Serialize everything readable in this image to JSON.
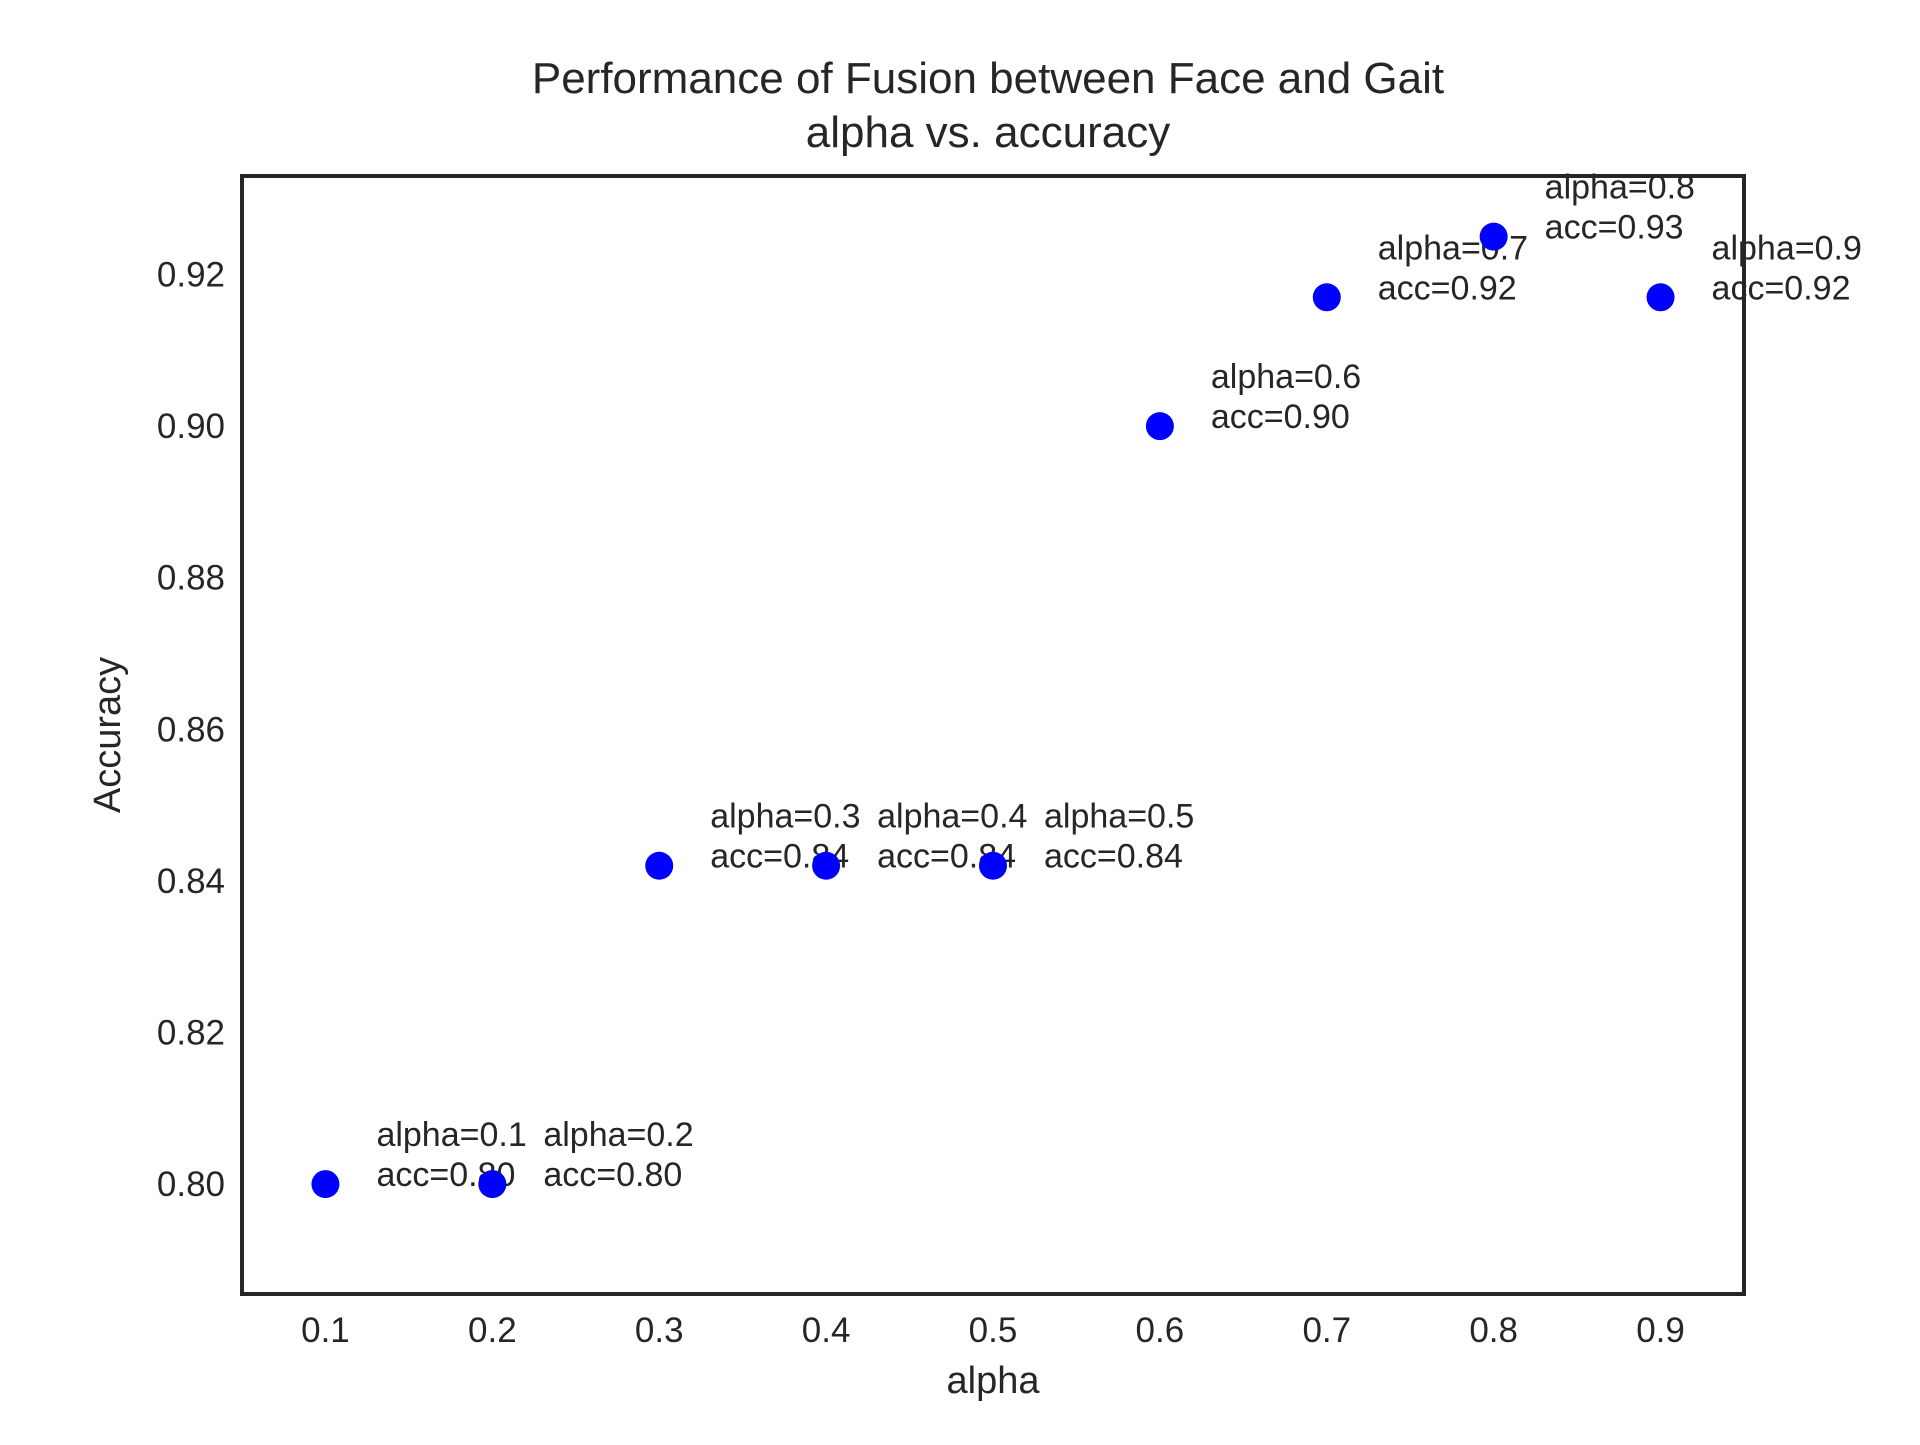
{
  "chart_data": {
    "type": "scatter",
    "title": "Performance of Fusion between Face and Gait",
    "subtitle": "alpha vs. accuracy",
    "xlabel": "alpha",
    "ylabel": "Accuracy",
    "xlim": [
      0.05,
      0.95
    ],
    "ylim": [
      0.7855,
      0.933
    ],
    "xticks": [
      0.1,
      0.2,
      0.3,
      0.4,
      0.5,
      0.6,
      0.7,
      0.8,
      0.9
    ],
    "xtick_labels": [
      "0.1",
      "0.2",
      "0.3",
      "0.4",
      "0.5",
      "0.6",
      "0.7",
      "0.8",
      "0.9"
    ],
    "yticks": [
      0.8,
      0.82,
      0.84,
      0.86,
      0.88,
      0.9,
      0.92
    ],
    "ytick_labels": [
      "0.80",
      "0.82",
      "0.84",
      "0.86",
      "0.88",
      "0.90",
      "0.92"
    ],
    "grid": false,
    "marker_color": "#0000ff",
    "points": [
      {
        "x": 0.1,
        "y": 0.8,
        "label_line1": "alpha=0.1",
        "label_line2": "acc=0.80"
      },
      {
        "x": 0.2,
        "y": 0.8,
        "label_line1": "alpha=0.2",
        "label_line2": "acc=0.80"
      },
      {
        "x": 0.3,
        "y": 0.842,
        "label_line1": "alpha=0.3",
        "label_line2": "acc=0.84"
      },
      {
        "x": 0.4,
        "y": 0.842,
        "label_line1": "alpha=0.4",
        "label_line2": "acc=0.84"
      },
      {
        "x": 0.5,
        "y": 0.842,
        "label_line1": "alpha=0.5",
        "label_line2": "acc=0.84"
      },
      {
        "x": 0.6,
        "y": 0.9,
        "label_line1": "alpha=0.6",
        "label_line2": "acc=0.90"
      },
      {
        "x": 0.7,
        "y": 0.917,
        "label_line1": "alpha=0.7",
        "label_line2": "acc=0.92"
      },
      {
        "x": 0.8,
        "y": 0.925,
        "label_line1": "alpha=0.8",
        "label_line2": "acc=0.93"
      },
      {
        "x": 0.9,
        "y": 0.917,
        "label_line1": "alpha=0.9",
        "label_line2": "acc=0.92"
      }
    ]
  }
}
